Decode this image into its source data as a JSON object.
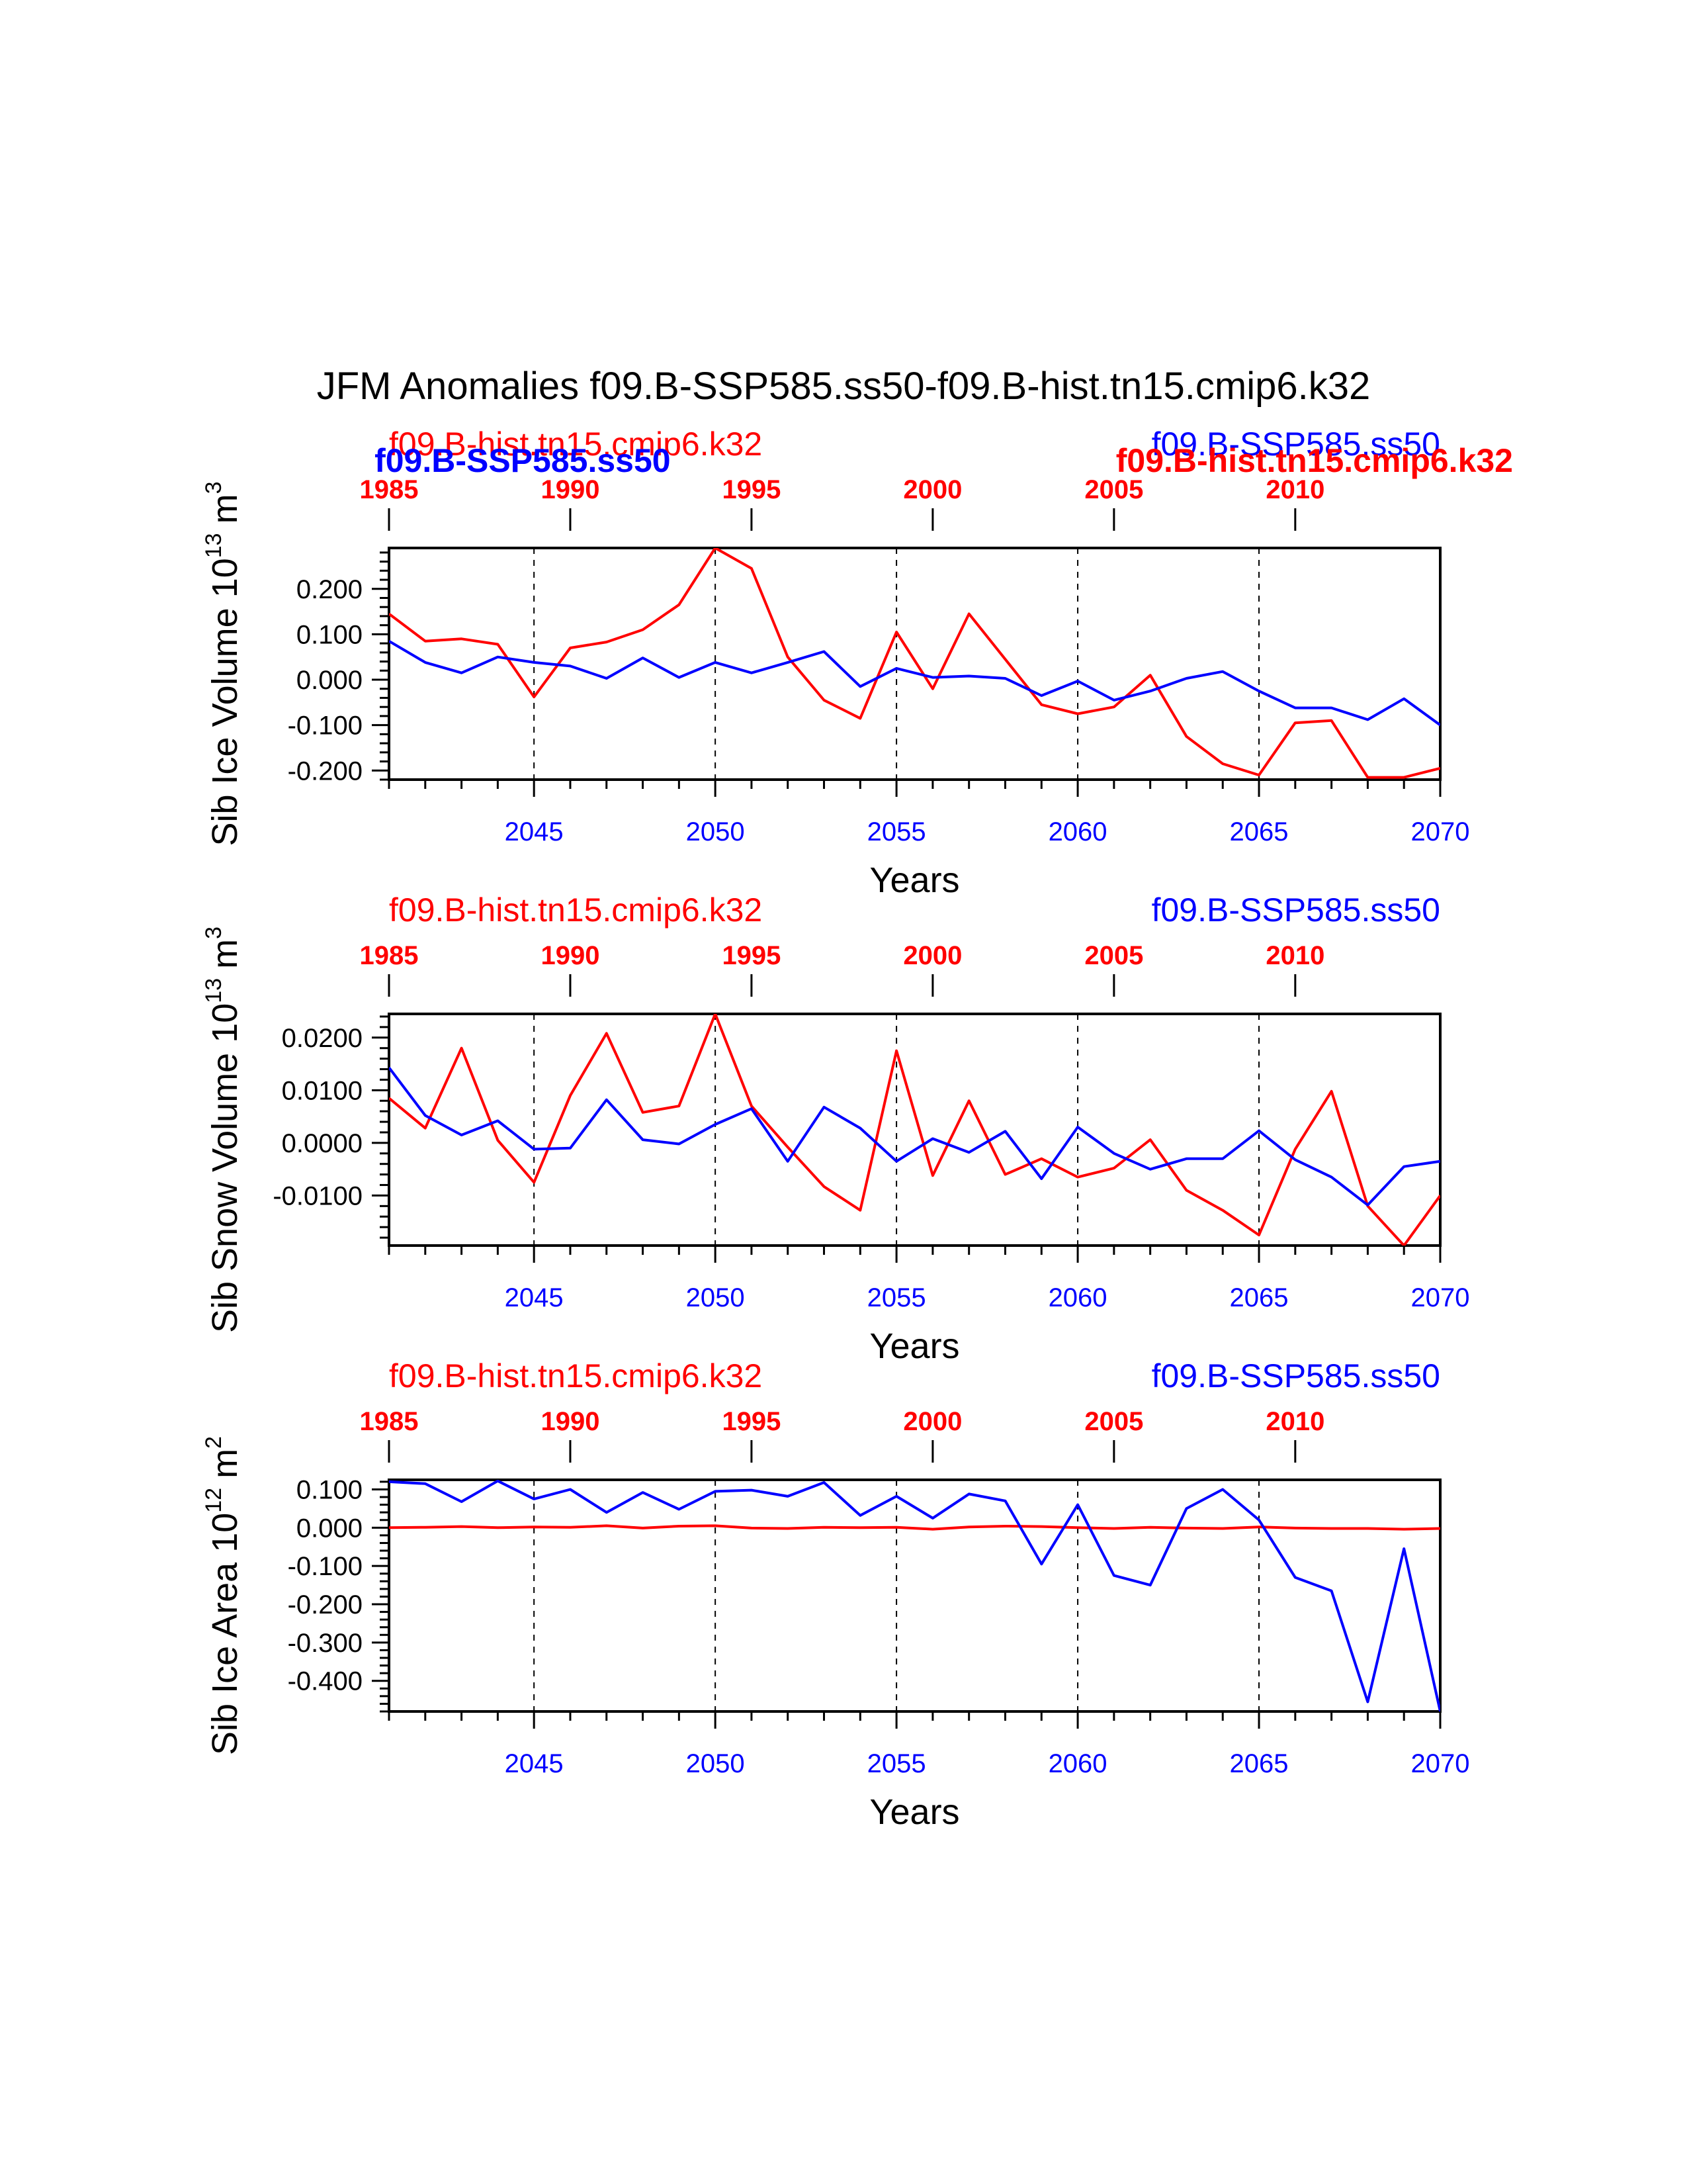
{
  "title": "JFM Anomalies f09.B-SSP585.ss50-f09.B-hist.tn15.cmip6.k32",
  "colors": {
    "hist": "#ff0000",
    "ssp": "#0000ff",
    "axis": "#000000"
  },
  "chart_data": [
    {
      "type": "line",
      "ylabel": "Sib Ice Volume 10",
      "ylabel_exponent": "13",
      "ylabel_unit": "m",
      "ylabel_unit_exponent": "3",
      "xlabel": "Years",
      "ylim": [
        -0.22,
        0.29
      ],
      "yticks": [
        "0.200",
        "0.100",
        "0.000",
        "-0.100",
        "-0.200"
      ],
      "ytick_values": [
        0.2,
        0.1,
        0.0,
        -0.1,
        -0.2
      ],
      "bottom_axis": {
        "range": [
          2041,
          2070
        ],
        "ticks": [
          "2045",
          "2050",
          "2055",
          "2060",
          "2065",
          "2070"
        ]
      },
      "top_axis": {
        "range": [
          1985,
          2014
        ],
        "ticks": [
          "1985",
          "1990",
          "1995",
          "2000",
          "2005",
          "2010"
        ]
      },
      "grid_lines_at": [
        2045,
        2050,
        2055,
        2060,
        2065
      ],
      "overlapping_names": {
        "left_red": "f09.B-hist.tn15.cmip6.k32",
        "left_blue_bold": "f09.B-SSP585.ss50",
        "right_blue": "f09.B-SSP585.ss50",
        "right_red_bold": "f09.B-hist.tn15.cmip6.k32"
      },
      "series": [
        {
          "name": "f09.B-hist.tn15.cmip6.k32",
          "color": "#ff0000",
          "x": [
            1985,
            1986,
            1987,
            1988,
            1989,
            1990,
            1991,
            1992,
            1993,
            1994,
            1995,
            1996,
            1997,
            1998,
            1999,
            2000,
            2001,
            2002,
            2003,
            2004,
            2005,
            2006,
            2007,
            2008,
            2009,
            2010,
            2011,
            2012,
            2013,
            2014
          ],
          "values": [
            0.145,
            0.085,
            0.09,
            0.078,
            -0.038,
            0.07,
            0.083,
            0.11,
            0.165,
            0.29,
            0.245,
            0.05,
            -0.045,
            -0.085,
            0.105,
            -0.02,
            0.145,
            0.045,
            -0.055,
            -0.075,
            -0.06,
            0.01,
            -0.125,
            -0.185,
            -0.21,
            -0.095,
            -0.09,
            -0.215,
            -0.215,
            -0.195
          ]
        },
        {
          "name": "f09.B-SSP585.ss50",
          "color": "#0000ff",
          "x": [
            2041,
            2042,
            2043,
            2044,
            2045,
            2046,
            2047,
            2048,
            2049,
            2050,
            2051,
            2052,
            2053,
            2054,
            2055,
            2056,
            2057,
            2058,
            2059,
            2060,
            2061,
            2062,
            2063,
            2064,
            2065,
            2066,
            2067,
            2068,
            2069,
            2070
          ],
          "values": [
            0.085,
            0.038,
            0.015,
            0.05,
            0.038,
            0.03,
            0.003,
            0.048,
            0.005,
            0.038,
            0.015,
            0.038,
            0.062,
            -0.015,
            0.025,
            0.005,
            0.008,
            0.003,
            -0.035,
            -0.003,
            -0.045,
            -0.025,
            0.003,
            0.018,
            -0.025,
            -0.062,
            -0.062,
            -0.088,
            -0.042,
            -0.1
          ]
        }
      ]
    },
    {
      "type": "line",
      "ylabel": "Sib Snow Volume 10",
      "ylabel_exponent": "13",
      "ylabel_unit": "m",
      "ylabel_unit_exponent": "3",
      "xlabel": "Years",
      "ylim": [
        -0.0195,
        0.0245
      ],
      "yticks": [
        "0.0200",
        "0.0100",
        "0.0000",
        "-0.0100"
      ],
      "ytick_values": [
        0.02,
        0.01,
        0.0,
        -0.01
      ],
      "bottom_axis": {
        "range": [
          2041,
          2070
        ],
        "ticks": [
          "2045",
          "2050",
          "2055",
          "2060",
          "2065",
          "2070"
        ]
      },
      "top_axis": {
        "range": [
          1985,
          2014
        ],
        "ticks": [
          "1985",
          "1990",
          "1995",
          "2000",
          "2005",
          "2010"
        ]
      },
      "grid_lines_at": [
        2045,
        2050,
        2055,
        2060,
        2065
      ],
      "names": {
        "left_red": "f09.B-hist.tn15.cmip6.k32",
        "right_blue": "f09.B-SSP585.ss50"
      },
      "series": [
        {
          "name": "f09.B-hist.tn15.cmip6.k32",
          "color": "#ff0000",
          "x": [
            1985,
            1986,
            1987,
            1988,
            1989,
            1990,
            1991,
            1992,
            1993,
            1994,
            1995,
            1996,
            1997,
            1998,
            1999,
            2000,
            2001,
            2002,
            2003,
            2004,
            2005,
            2006,
            2007,
            2008,
            2009,
            2010,
            2011,
            2012,
            2013,
            2014
          ],
          "values": [
            0.0085,
            0.0028,
            0.018,
            0.0005,
            -0.0075,
            0.009,
            0.0208,
            0.0058,
            0.007,
            0.0245,
            0.007,
            -0.0008,
            -0.0083,
            -0.0128,
            0.0175,
            -0.0062,
            0.008,
            -0.006,
            -0.003,
            -0.0065,
            -0.0048,
            0.0006,
            -0.009,
            -0.0128,
            -0.0175,
            -0.0012,
            0.0098,
            -0.012,
            -0.0195,
            -0.01
          ]
        },
        {
          "name": "f09.B-SSP585.ss50",
          "color": "#0000ff",
          "x": [
            2041,
            2042,
            2043,
            2044,
            2045,
            2046,
            2047,
            2048,
            2049,
            2050,
            2051,
            2052,
            2053,
            2054,
            2055,
            2056,
            2057,
            2058,
            2059,
            2060,
            2061,
            2062,
            2063,
            2064,
            2065,
            2066,
            2067,
            2068,
            2069,
            2070
          ],
          "values": [
            0.0143,
            0.0052,
            0.0015,
            0.0042,
            -0.0012,
            -0.001,
            0.0082,
            0.0006,
            -0.0002,
            0.0035,
            0.0065,
            -0.0035,
            0.0068,
            0.0028,
            -0.0035,
            0.0008,
            -0.0018,
            0.0022,
            -0.0068,
            0.003,
            -0.002,
            -0.005,
            -0.003,
            -0.003,
            0.0023,
            -0.0032,
            -0.0065,
            -0.0118,
            -0.0045,
            -0.0035
          ]
        }
      ]
    },
    {
      "type": "line",
      "ylabel": "Sib Ice Area 10",
      "ylabel_exponent": "12",
      "ylabel_unit": "m",
      "ylabel_unit_exponent": "2",
      "xlabel": "Years",
      "ylim": [
        -0.48,
        0.125
      ],
      "yticks": [
        "0.100",
        "0.000",
        "-0.100",
        "-0.200",
        "-0.300",
        "-0.400"
      ],
      "ytick_values": [
        0.1,
        0.0,
        -0.1,
        -0.2,
        -0.3,
        -0.4
      ],
      "bottom_axis": {
        "range": [
          2041,
          2070
        ],
        "ticks": [
          "2045",
          "2050",
          "2055",
          "2060",
          "2065",
          "2070"
        ]
      },
      "top_axis": {
        "range": [
          1985,
          2014
        ],
        "ticks": [
          "1985",
          "1990",
          "1995",
          "2000",
          "2005",
          "2010"
        ]
      },
      "grid_lines_at": [
        2045,
        2050,
        2055,
        2060,
        2065
      ],
      "names": {
        "left_red": "f09.B-hist.tn15.cmip6.k32",
        "right_blue": "f09.B-SSP585.ss50"
      },
      "series": [
        {
          "name": "f09.B-hist.tn15.cmip6.k32",
          "color": "#ff0000",
          "x": [
            1985,
            1986,
            1987,
            1988,
            1989,
            1990,
            1991,
            1992,
            1993,
            1994,
            1995,
            1996,
            1997,
            1998,
            1999,
            2000,
            2001,
            2002,
            2003,
            2004,
            2005,
            2006,
            2007,
            2008,
            2009,
            2010,
            2011,
            2012,
            2013,
            2014
          ],
          "values": [
            0.0,
            0.001,
            0.003,
            0.0,
            0.002,
            0.001,
            0.005,
            -0.001,
            0.004,
            0.005,
            -0.001,
            -0.002,
            0.001,
            0.0,
            0.001,
            -0.004,
            0.002,
            0.004,
            0.003,
            0.0,
            -0.002,
            0.001,
            -0.001,
            -0.002,
            0.002,
            -0.001,
            -0.002,
            -0.002,
            -0.004,
            -0.002
          ]
        },
        {
          "name": "f09.B-SSP585.ss50",
          "color": "#0000ff",
          "x": [
            2041,
            2042,
            2043,
            2044,
            2045,
            2046,
            2047,
            2048,
            2049,
            2050,
            2051,
            2052,
            2053,
            2054,
            2055,
            2056,
            2057,
            2058,
            2059,
            2060,
            2061,
            2062,
            2063,
            2064,
            2065,
            2066,
            2067,
            2068,
            2069,
            2070
          ],
          "values": [
            0.12,
            0.115,
            0.068,
            0.122,
            0.075,
            0.1,
            0.04,
            0.092,
            0.048,
            0.095,
            0.098,
            0.082,
            0.118,
            0.032,
            0.082,
            0.025,
            0.088,
            0.07,
            -0.095,
            0.06,
            -0.125,
            -0.15,
            0.05,
            0.1,
            0.02,
            -0.13,
            -0.165,
            -0.455,
            -0.055,
            -0.48
          ]
        }
      ]
    }
  ]
}
